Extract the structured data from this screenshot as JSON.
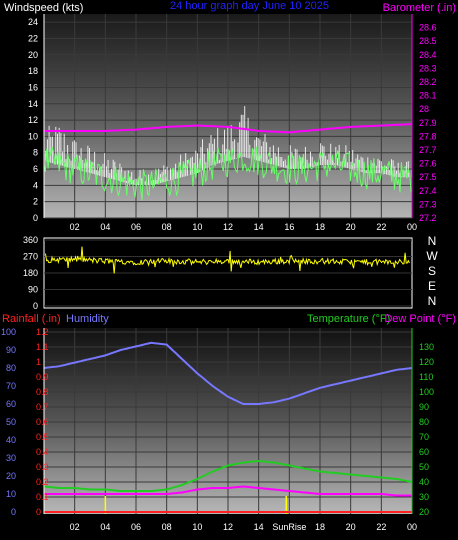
{
  "colors": {
    "background": "#000000",
    "wind_axis": "#ffffff",
    "barometer": "#ff00ff",
    "title": "#2222ff",
    "wind_direction": "#ffff00",
    "rain": "#ff2222",
    "humidity": "#7777ff",
    "temperature": "#22cc22",
    "dewpoint": "#ff00ff",
    "sunrise_sunset": "#ffff00",
    "wind_avg": "#66ff66",
    "wind_gust": "#ffffff"
  },
  "chart_data": [
    {
      "type": "line",
      "title": "24 hour graph day   June 10 2025",
      "ylabel": "Windspeed (kts)",
      "y2label": "Barometer (.in)",
      "ylim": [
        0,
        25
      ],
      "y2lim": [
        27.2,
        28.7
      ],
      "yticks": [
        0,
        2,
        4,
        6,
        8,
        10,
        12,
        14,
        16,
        18,
        20,
        22,
        24
      ],
      "y2ticks": [
        27.2,
        27.3,
        27.4,
        27.5,
        27.6,
        27.7,
        27.8,
        27.9,
        28,
        28.1,
        28.2,
        28.3,
        28.4,
        28.5,
        28.6
      ],
      "xticks": [
        "02",
        "04",
        "06",
        "08",
        "10",
        "12",
        "14",
        "16",
        "18",
        "20",
        "22",
        "00"
      ],
      "series": [
        {
          "key": "avg_wind",
          "hours": [
            0,
            1,
            2,
            3,
            4,
            5,
            6,
            7,
            8,
            9,
            10,
            11,
            12,
            13,
            14,
            15,
            16,
            17,
            18,
            19,
            20,
            21,
            22,
            23,
            24
          ],
          "values": [
            7,
            6.5,
            6,
            5.5,
            5,
            4.5,
            4,
            4,
            4.5,
            5,
            5.5,
            6.5,
            7,
            7.5,
            7,
            6.5,
            6,
            6,
            6.5,
            6.5,
            6,
            5.5,
            5.5,
            5,
            5
          ]
        },
        {
          "key": "gust",
          "hours": [
            0,
            1,
            2,
            3,
            4,
            5,
            6,
            7,
            8,
            9,
            10,
            11,
            12,
            13,
            14,
            15,
            16,
            17,
            18,
            19,
            20,
            21,
            22,
            23,
            24
          ],
          "values": [
            11,
            12,
            10,
            9,
            8,
            7,
            6,
            6,
            7,
            8,
            9,
            11,
            12,
            14,
            11,
            10,
            9,
            9,
            10,
            9,
            9,
            8,
            8,
            7,
            7
          ]
        },
        {
          "key": "barometer",
          "axis": "right",
          "hours": [
            0,
            2,
            4,
            6,
            8,
            10,
            12,
            14,
            16,
            18,
            20,
            22,
            24
          ],
          "values": [
            27.84,
            27.84,
            27.84,
            27.85,
            27.87,
            27.88,
            27.87,
            27.84,
            27.83,
            27.85,
            27.87,
            27.88,
            27.89
          ]
        }
      ]
    },
    {
      "type": "scatter",
      "ylim": [
        0,
        360
      ],
      "yticks": [
        0,
        90,
        180,
        270,
        360
      ],
      "compass": [
        "N",
        "W",
        "S",
        "E",
        "N"
      ],
      "series": [
        {
          "key": "wind_direction",
          "hours": [
            0,
            2,
            4,
            6,
            8,
            10,
            12,
            14,
            16,
            18,
            20,
            22,
            24
          ],
          "values": [
            250,
            255,
            245,
            240,
            245,
            240,
            245,
            240,
            245,
            245,
            240,
            240,
            240
          ]
        }
      ]
    },
    {
      "type": "line",
      "labels": {
        "rainfall": "Rainfall (.in)",
        "humidity": "Humidity",
        "temperature": "Temperature (°F)",
        "dewpoint": "Dew Point (°F)"
      },
      "humidity_lim": [
        0,
        100
      ],
      "humidity_ticks": [
        0,
        10,
        20,
        30,
        40,
        50,
        60,
        70,
        80,
        90,
        100
      ],
      "rain_lim": [
        0,
        1.2
      ],
      "rain_ticks": [
        0,
        0.1,
        0.2,
        0.3,
        0.4,
        0.5,
        0.6,
        0.7,
        0.8,
        0.9,
        1,
        1.1,
        1.2
      ],
      "temp_lim": [
        20,
        140
      ],
      "temp_ticks": [
        20,
        30,
        40,
        50,
        60,
        70,
        80,
        90,
        100,
        110,
        120,
        130
      ],
      "xticks": [
        "02",
        "04",
        "06",
        "08",
        "10",
        "12",
        "14",
        "SunRise",
        "18",
        "20",
        "22",
        "00"
      ],
      "sunrise_hour": 4.0,
      "sunset_hour": 15.8,
      "series": [
        {
          "key": "humidity",
          "hours": [
            0,
            1,
            2,
            3,
            4,
            5,
            6,
            7,
            8,
            9,
            10,
            11,
            12,
            13,
            14,
            15,
            16,
            17,
            18,
            19,
            20,
            21,
            22,
            23,
            24
          ],
          "values": [
            80,
            81,
            83,
            85,
            87,
            90,
            92,
            94,
            93,
            85,
            77,
            70,
            64,
            60,
            60,
            61,
            63,
            66,
            69,
            71,
            73,
            75,
            77,
            79,
            80
          ]
        },
        {
          "key": "temperature",
          "hours": [
            0,
            1,
            2,
            3,
            4,
            5,
            6,
            7,
            8,
            9,
            10,
            11,
            12,
            13,
            14,
            15,
            16,
            17,
            18,
            19,
            20,
            21,
            22,
            23,
            24
          ],
          "values": [
            37,
            36,
            36,
            35,
            35,
            34,
            34,
            34,
            35,
            38,
            42,
            47,
            51,
            53,
            54,
            53,
            51,
            49,
            47,
            46,
            45,
            44,
            43,
            42,
            40
          ]
        },
        {
          "key": "dewpoint",
          "hours": [
            0,
            1,
            2,
            3,
            4,
            5,
            6,
            7,
            8,
            9,
            10,
            11,
            12,
            13,
            14,
            15,
            16,
            17,
            18,
            19,
            20,
            21,
            22,
            23,
            24
          ],
          "values": [
            32,
            32,
            32,
            32,
            32,
            32,
            32,
            32,
            32,
            33,
            35,
            36,
            36,
            37,
            36,
            35,
            34,
            33,
            32,
            32,
            32,
            32,
            32,
            31,
            31
          ]
        },
        {
          "key": "rainfall",
          "hours": [
            0,
            24
          ],
          "values": [
            0,
            0
          ]
        }
      ]
    }
  ]
}
